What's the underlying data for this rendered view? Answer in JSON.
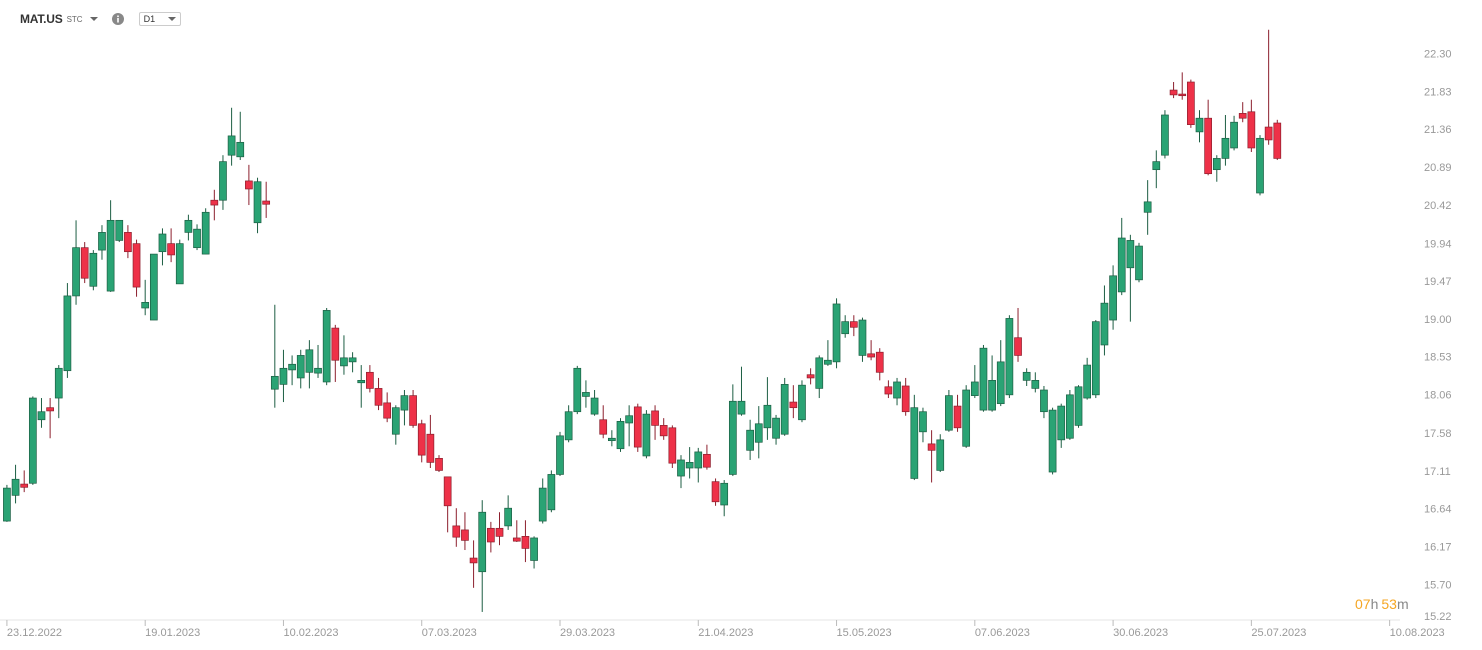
{
  "header": {
    "symbol": "MAT.US",
    "market": "STC",
    "interval": "D1"
  },
  "countdown": [
    "07",
    "h",
    "53",
    "m"
  ],
  "chart_data": {
    "type": "candlestick",
    "up_color": "#2aa374",
    "down_color": "#ee3148",
    "up_border": "#1c5e43",
    "down_border": "#8c1f2d",
    "xlim": [
      -0.8,
      161.2
    ],
    "xticks": [
      {
        "value": 0,
        "label": "23.12.2022"
      },
      {
        "value": 16,
        "label": "19.01.2023"
      },
      {
        "value": 32,
        "label": "10.02.2023"
      },
      {
        "value": 48,
        "label": "07.03.2023"
      },
      {
        "value": 64,
        "label": "29.03.2023"
      },
      {
        "value": 80,
        "label": "21.04.2023"
      },
      {
        "value": 96,
        "label": "15.05.2023"
      },
      {
        "value": 112,
        "label": "07.06.2023"
      },
      {
        "value": 128,
        "label": "30.06.2023"
      },
      {
        "value": 144,
        "label": "25.07.2023"
      },
      {
        "value": 160,
        "label": "10.08.2023"
      }
    ],
    "ylim": [
      15.22,
      22.98
    ],
    "yticks": [
      {
        "value": 22.3,
        "label": "22.30"
      },
      21.83,
      21.36,
      20.89,
      20.42,
      19.94,
      19.47,
      {
        "value": 19.0,
        "label": "19.00"
      },
      18.53,
      18.06,
      17.58,
      17.11,
      16.64,
      16.17,
      {
        "value": 15.7,
        "label": "15.70"
      },
      15.22
    ],
    "open": [
      16.5,
      16.82,
      16.96,
      16.97,
      17.76,
      17.91,
      18.03,
      18.37,
      19.3,
      19.9,
      19.42,
      19.87,
      19.36,
      19.99,
      20.09,
      19.95,
      19.15,
      19.0,
      19.85,
      19.95,
      19.45,
      20.09,
      19.9,
      19.82,
      20.49,
      20.49,
      21.05,
      21.03,
      20.73,
      20.21,
      20.48,
      18.14,
      18.2,
      18.38,
      18.28,
      18.35,
      18.34,
      18.23,
      18.9,
      18.43,
      18.48,
      18.22,
      18.35,
      18.15,
      17.97,
      17.58,
      17.88,
      18.06,
      17.71,
      17.58,
      17.28,
      17.05,
      16.44,
      16.39,
      16.04,
      15.87,
      16.41,
      16.41,
      16.44,
      16.29,
      16.31,
      16.01,
      16.5,
      16.64,
      17.08,
      17.51,
      17.86,
      18.05,
      17.83,
      17.76,
      17.5,
      17.4,
      17.72,
      17.92,
      17.31,
      17.87,
      17.69,
      17.66,
      17.06,
      17.16,
      17.16,
      17.33,
      16.99,
      16.7,
      17.08,
      17.83,
      17.38,
      17.48,
      17.66,
      17.53,
      17.58,
      17.98,
      17.76,
      18.32,
      18.15,
      18.45,
      18.48,
      18.83,
      18.98,
      18.56,
      18.58,
      18.6,
      18.17,
      18.03,
      18.18,
      17.03,
      17.61,
      17.46,
      17.13,
      17.63,
      17.93,
      17.43,
      18.06,
      17.88,
      17.88,
      17.96,
      18.07,
      18.78,
      18.25,
      18.15,
      17.86,
      17.11,
      17.51,
      17.53,
      17.69,
      18.03,
      18.07,
      18.69,
      19.0,
      19.35,
      19.65,
      19.5,
      20.34,
      20.87,
      21.05,
      21.86,
      21.81,
      21.96,
      21.34,
      21.51,
      20.87,
      21.01,
      21.14,
      21.57,
      21.59,
      20.58,
      21.4,
      21.45
    ],
    "high": [
      16.95,
      17.2,
      17.13,
      18.05,
      18.03,
      18.03,
      18.44,
      19.46,
      20.24,
      19.97,
      19.87,
      20.18,
      20.49,
      20.24,
      20.18,
      20.0,
      19.5,
      19.82,
      20.14,
      20.14,
      20.0,
      20.31,
      20.19,
      20.39,
      20.62,
      21.05,
      21.64,
      21.59,
      20.93,
      20.77,
      20.72,
      19.19,
      18.63,
      18.56,
      18.63,
      18.75,
      18.69,
      19.15,
      18.94,
      18.81,
      18.6,
      18.44,
      18.44,
      18.28,
      18.1,
      17.94,
      18.13,
      18.13,
      17.76,
      17.82,
      17.32,
      17.05,
      16.66,
      16.61,
      16.26,
      16.76,
      16.49,
      16.61,
      16.82,
      16.51,
      16.51,
      16.31,
      17.03,
      17.13,
      17.61,
      17.94,
      18.43,
      18.25,
      18.13,
      17.94,
      17.63,
      17.78,
      17.94,
      17.96,
      17.88,
      17.94,
      17.78,
      17.69,
      17.32,
      17.42,
      17.41,
      17.45,
      17.03,
      17.01,
      18.2,
      18.42,
      17.76,
      17.93,
      18.29,
      17.82,
      18.28,
      18.19,
      18.25,
      18.4,
      18.56,
      18.75,
      19.27,
      19.06,
      19.06,
      19.03,
      18.75,
      18.65,
      18.25,
      18.28,
      18.28,
      18.07,
      17.91,
      17.63,
      17.58,
      18.13,
      18.07,
      18.19,
      18.44,
      18.69,
      18.56,
      18.75,
      19.06,
      19.15,
      18.4,
      18.35,
      18.18,
      17.91,
      17.96,
      18.13,
      18.19,
      18.53,
      19.0,
      19.43,
      19.68,
      20.27,
      20.06,
      19.96,
      20.74,
      21.11,
      21.61,
      21.96,
      22.08,
      21.99,
      21.61,
      21.74,
      21.05,
      21.55,
      21.54,
      21.71,
      21.74,
      21.3,
      22.61,
      21.49
    ],
    "low": [
      16.49,
      16.72,
      16.86,
      16.95,
      17.66,
      17.53,
      17.78,
      18.28,
      19.19,
      19.46,
      19.37,
      19.75,
      19.35,
      19.97,
      19.77,
      19.29,
      19.06,
      19.0,
      19.68,
      19.72,
      19.45,
      19.99,
      19.87,
      19.82,
      20.24,
      20.37,
      20.92,
      20.99,
      20.43,
      20.08,
      20.27,
      17.91,
      17.98,
      18.19,
      18.15,
      18.15,
      18.28,
      18.19,
      18.23,
      18.32,
      18.35,
      17.91,
      18.1,
      17.88,
      17.73,
      17.45,
      17.69,
      17.66,
      17.23,
      17.16,
      17.11,
      16.36,
      16.18,
      16.14,
      15.67,
      15.37,
      16.11,
      16.2,
      16.39,
      16.24,
      15.99,
      15.91,
      16.47,
      16.61,
      17.06,
      17.48,
      17.83,
      17.91,
      17.81,
      17.53,
      17.43,
      17.36,
      17.43,
      17.36,
      17.28,
      17.51,
      17.51,
      17.16,
      16.91,
      17.03,
      16.98,
      17.14,
      16.69,
      16.56,
      17.06,
      17.81,
      17.26,
      17.28,
      17.51,
      17.45,
      17.56,
      17.78,
      17.73,
      18.2,
      18.03,
      18.43,
      18.4,
      18.78,
      18.8,
      18.48,
      18.5,
      18.25,
      18.03,
      17.94,
      17.81,
      17.01,
      17.48,
      16.98,
      17.11,
      17.61,
      17.61,
      17.41,
      18.03,
      17.86,
      17.86,
      17.93,
      18.03,
      18.48,
      18.18,
      18.1,
      17.78,
      17.08,
      17.41,
      17.51,
      17.66,
      18.01,
      18.03,
      18.56,
      18.88,
      19.31,
      18.98,
      19.47,
      20.06,
      20.64,
      21.01,
      21.76,
      21.74,
      21.39,
      21.21,
      20.8,
      20.72,
      20.92,
      21.11,
      21.46,
      21.09,
      20.55,
      21.18,
      20.99
    ],
    "close": [
      16.91,
      17.02,
      16.92,
      18.03,
      17.86,
      17.87,
      18.4,
      19.3,
      19.9,
      19.52,
      19.83,
      20.09,
      20.24,
      20.24,
      19.85,
      19.41,
      19.22,
      19.82,
      20.07,
      19.81,
      19.95,
      20.24,
      20.13,
      20.34,
      20.43,
      20.97,
      21.29,
      21.21,
      20.63,
      20.72,
      20.44,
      18.3,
      18.4,
      18.45,
      18.56,
      18.63,
      18.4,
      19.12,
      18.5,
      18.53,
      18.53,
      18.25,
      18.15,
      17.94,
      17.78,
      17.91,
      18.06,
      17.69,
      17.32,
      17.23,
      17.13,
      16.69,
      16.3,
      16.26,
      15.98,
      16.61,
      16.24,
      16.31,
      16.66,
      16.25,
      16.16,
      16.29,
      16.91,
      17.08,
      17.56,
      17.86,
      18.4,
      18.1,
      18.03,
      17.58,
      17.53,
      17.74,
      17.81,
      17.42,
      17.83,
      17.69,
      17.56,
      17.22,
      17.26,
      17.23,
      17.36,
      17.17,
      16.74,
      16.97,
      17.99,
      17.99,
      17.63,
      17.71,
      17.94,
      17.78,
      18.2,
      17.91,
      18.19,
      18.28,
      18.53,
      18.5,
      19.2,
      18.98,
      18.91,
      19.0,
      18.54,
      18.35,
      18.08,
      18.23,
      17.86,
      17.91,
      17.86,
      17.38,
      17.51,
      18.06,
      17.66,
      18.13,
      18.23,
      18.65,
      18.25,
      18.48,
      19.02,
      18.56,
      18.35,
      18.25,
      18.13,
      17.88,
      17.93,
      18.07,
      18.17,
      18.44,
      18.98,
      19.21,
      19.55,
      20.02,
      19.99,
      19.92,
      20.47,
      20.97,
      21.55,
      21.8,
      21.79,
      21.43,
      21.51,
      20.82,
      21.01,
      21.26,
      21.46,
      21.51,
      21.14,
      21.26,
      21.24,
      21.01
    ]
  }
}
